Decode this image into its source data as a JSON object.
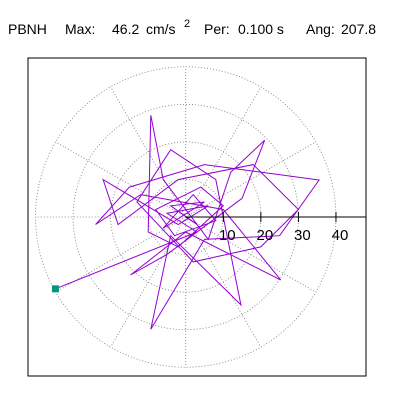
{
  "chart_data": {
    "type": "line",
    "station": "PBNH",
    "max_label": "Max:",
    "max": 46.2,
    "max_units": "cm/s",
    "max_units_exp": "2",
    "per_label": "Per:",
    "per": "0.100 s",
    "ang_label": "Ang:",
    "ang": 207.8,
    "x": [
      0,
      3,
      -4,
      5,
      -6,
      2,
      8,
      -3,
      -8,
      4,
      10,
      -2,
      -10,
      -9.3,
      -6,
      6,
      12,
      21,
      15,
      -5,
      -14.7,
      0,
      25.3,
      10,
      -12,
      -24,
      -15,
      5,
      35.5,
      25,
      5,
      -9.3,
      -4,
      14.7,
      8,
      -4,
      -13,
      2,
      20,
      30,
      18,
      -2,
      -18,
      -22,
      -2,
      6,
      -5,
      3,
      -34.7
    ],
    "series": [
      {
        "color": "#9400d3",
        "values": [
          0,
          -2,
          3,
          4,
          -3,
          6,
          -1,
          -5,
          2,
          8,
          3,
          -8,
          -4,
          27.2,
          10,
          -6,
          12,
          20.5,
          5,
          -10,
          -15.5,
          -4,
          -16.8,
          2,
          6,
          -2,
          8,
          14,
          9.9,
          -5,
          -6,
          -30,
          -5,
          -23.5,
          10,
          18,
          4,
          -12,
          -8,
          2,
          14,
          10,
          -2,
          10,
          -2,
          3,
          1,
          -4,
          -19.2
        ]
      }
    ],
    "marker_color": "#009977",
    "xlim": [
      -42,
      48
    ],
    "ylim": [
      -42.5,
      42.5
    ],
    "rticks": [
      10,
      20,
      30,
      40
    ],
    "grid": true
  }
}
